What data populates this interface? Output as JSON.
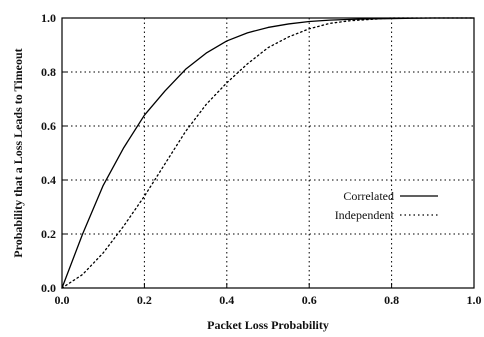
{
  "chart_data": {
    "type": "line",
    "xlabel": "Packet Loss Probability",
    "ylabel": "Probability that a Loss Leads to Timeout",
    "xlim": [
      0.0,
      1.0
    ],
    "ylim": [
      0.0,
      1.0
    ],
    "x_ticks": [
      "0.0",
      "0.2",
      "0.4",
      "0.6",
      "0.8",
      "1.0"
    ],
    "y_ticks": [
      "0.0",
      "0.2",
      "0.4",
      "0.6",
      "0.8",
      "1.0"
    ],
    "grid": true,
    "legend_position": "center-right",
    "series": [
      {
        "name": "Correlated",
        "line_style": "solid",
        "color": "#000000",
        "x": [
          0.0,
          0.05,
          0.1,
          0.15,
          0.2,
          0.25,
          0.3,
          0.35,
          0.4,
          0.45,
          0.5,
          0.55,
          0.6,
          0.65,
          0.7,
          0.75,
          0.8,
          0.85,
          0.9,
          0.95,
          1.0
        ],
        "y": [
          0.0,
          0.2,
          0.38,
          0.52,
          0.64,
          0.73,
          0.81,
          0.87,
          0.915,
          0.945,
          0.965,
          0.978,
          0.987,
          0.992,
          0.995,
          0.997,
          0.998,
          0.999,
          1.0,
          1.0,
          1.0
        ]
      },
      {
        "name": "Independent",
        "line_style": "dotted",
        "color": "#000000",
        "x": [
          0.0,
          0.05,
          0.1,
          0.15,
          0.2,
          0.25,
          0.3,
          0.35,
          0.4,
          0.45,
          0.5,
          0.55,
          0.6,
          0.65,
          0.7,
          0.75,
          0.8,
          0.85,
          0.9,
          0.95,
          1.0
        ],
        "y": [
          0.0,
          0.05,
          0.13,
          0.23,
          0.34,
          0.46,
          0.58,
          0.68,
          0.76,
          0.83,
          0.89,
          0.93,
          0.96,
          0.98,
          0.99,
          0.995,
          1.0,
          1.0,
          1.0,
          1.0,
          1.0
        ]
      }
    ]
  }
}
